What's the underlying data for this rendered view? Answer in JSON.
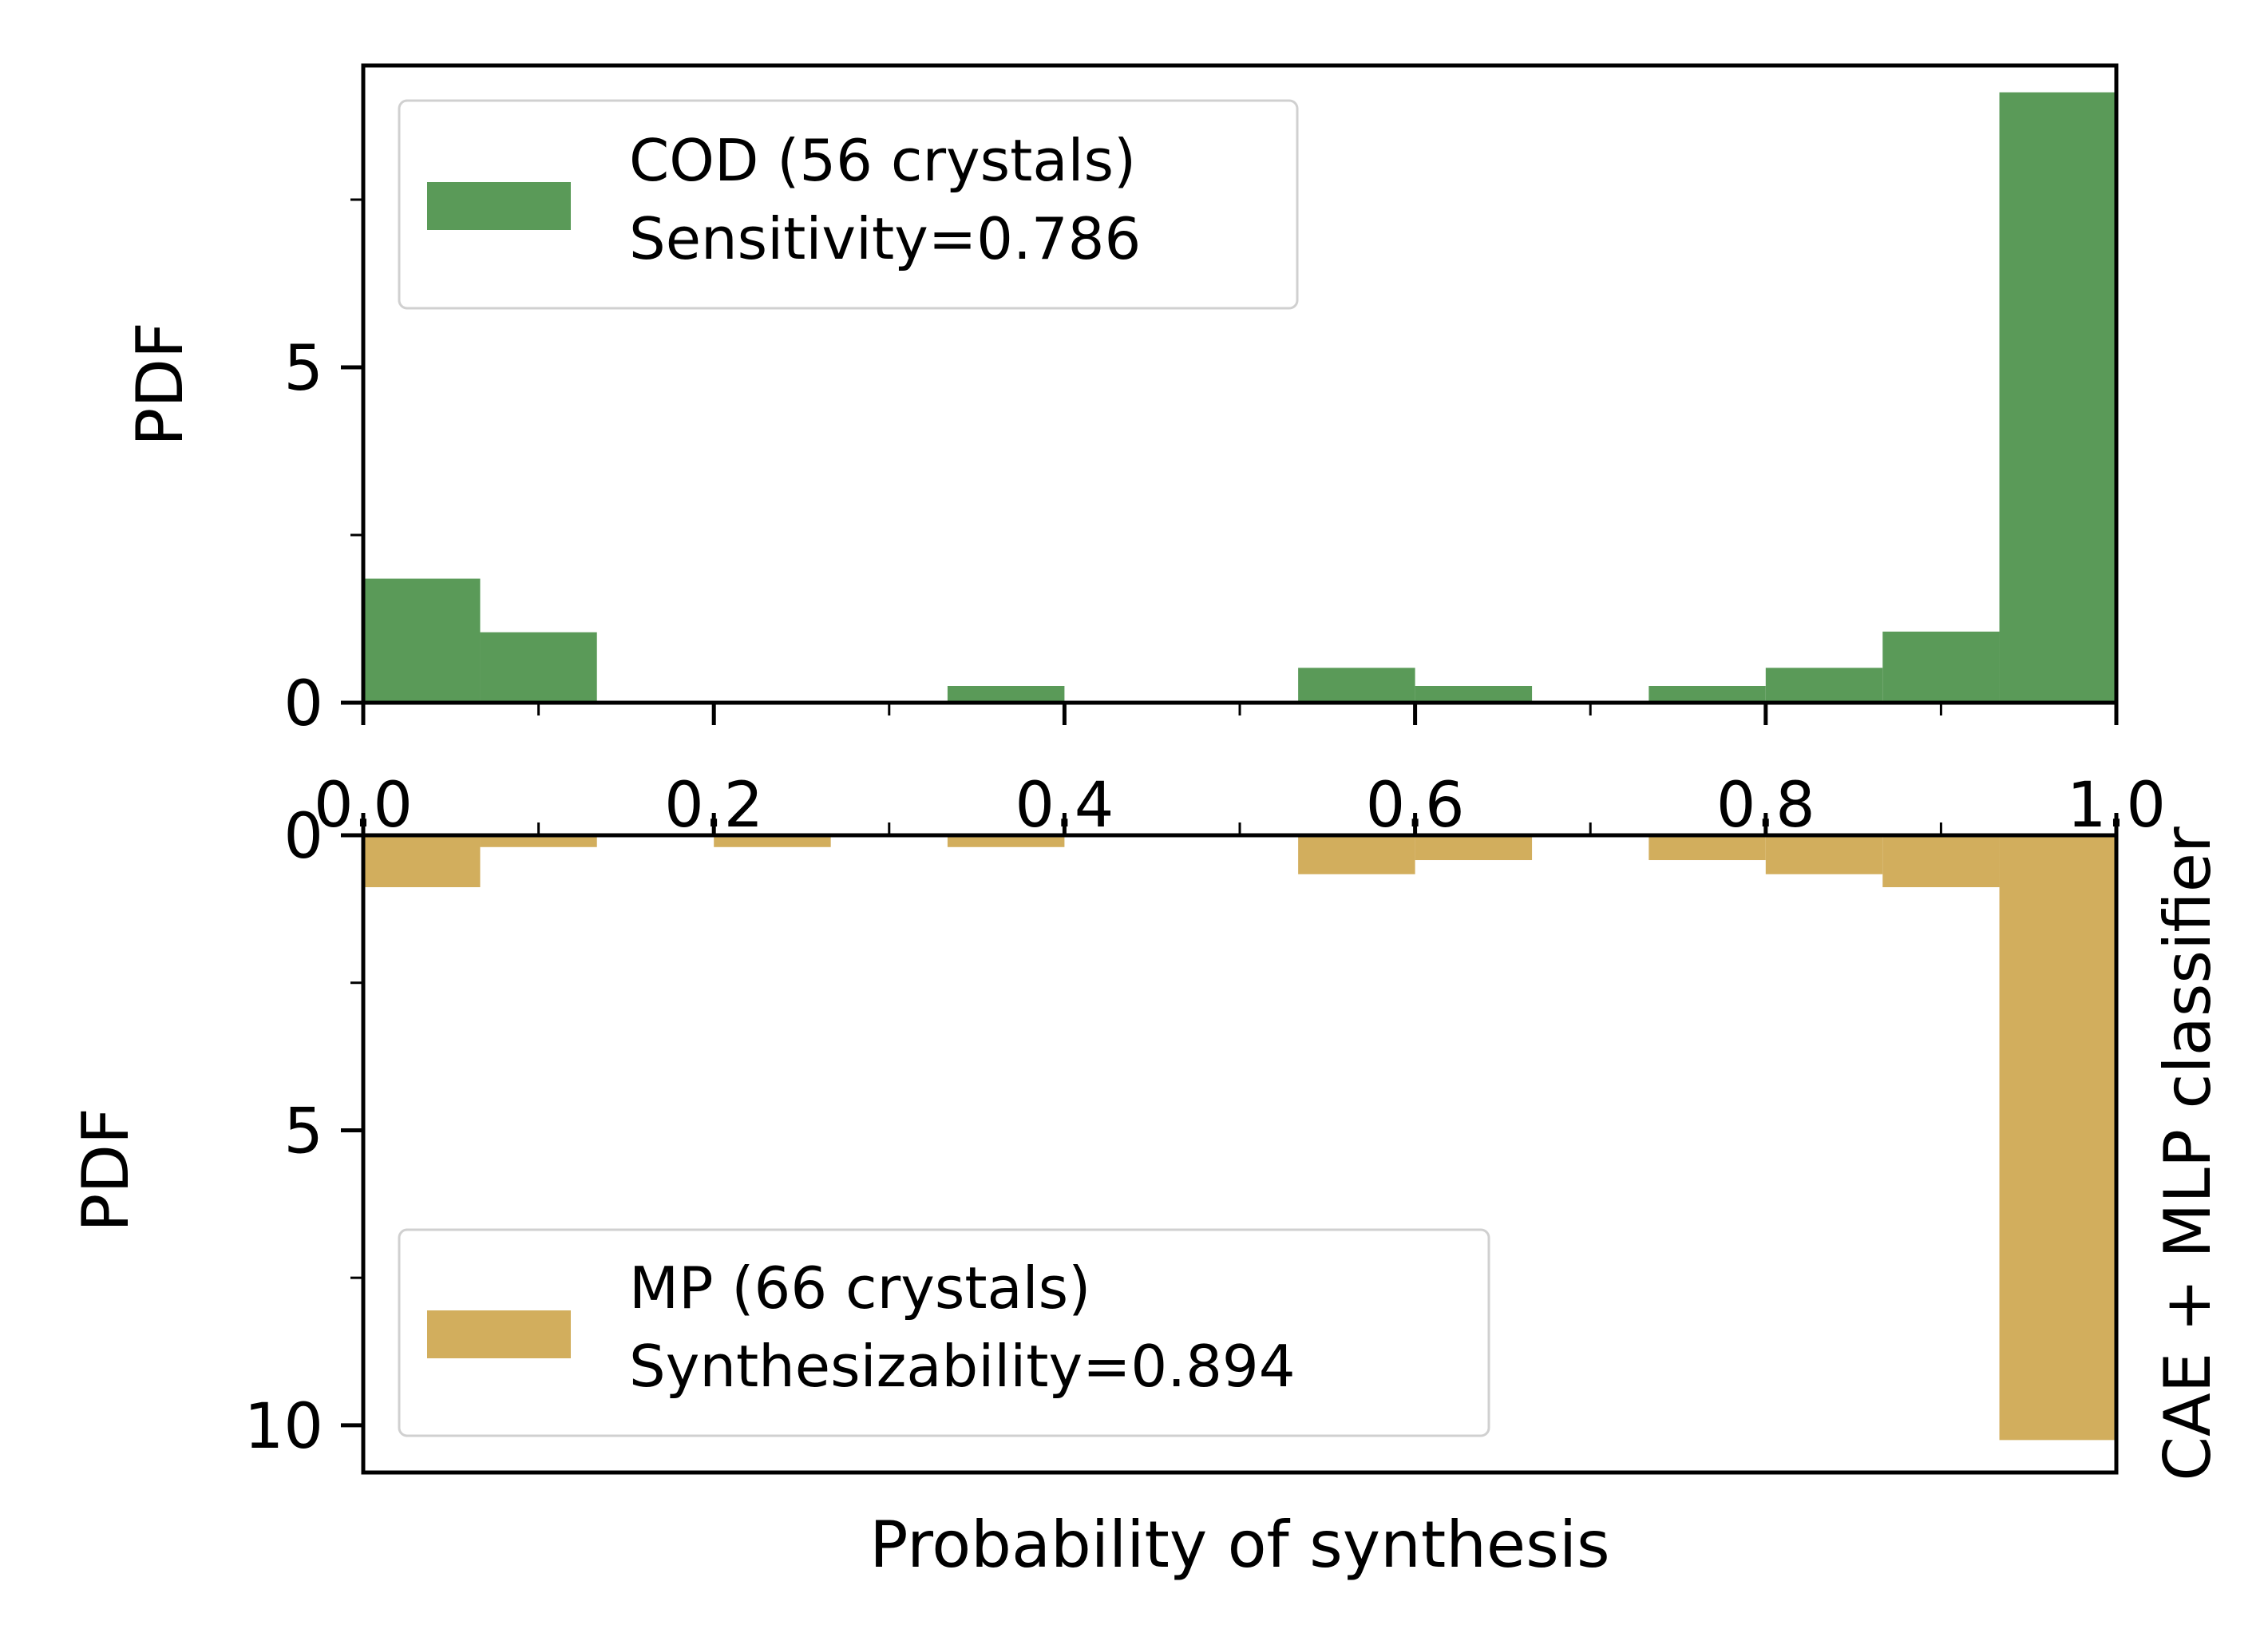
{
  "chart_data": [
    {
      "type": "bar",
      "panel": "top",
      "orientation": "up",
      "ylabel": "PDF",
      "xlim": [
        0.0,
        1.0
      ],
      "ylim": [
        0,
        9.5
      ],
      "x_ticks": [
        "0.0",
        "0.2",
        "0.4",
        "0.6",
        "0.8",
        "1.0"
      ],
      "y_ticks": [
        "0",
        "5"
      ],
      "bin_edges": [
        0.0,
        0.0667,
        0.1333,
        0.2,
        0.2667,
        0.3333,
        0.4,
        0.4667,
        0.5333,
        0.6,
        0.6667,
        0.7333,
        0.8,
        0.8667,
        0.9333,
        1.0
      ],
      "series": [
        {
          "color": "#5a9a58",
          "values": [
            1.85,
            1.05,
            0,
            0,
            0,
            0.25,
            0,
            0,
            0.52,
            0.25,
            0,
            0.25,
            0.52,
            1.06,
            9.1
          ]
        }
      ],
      "legend": {
        "position": "upper-left",
        "lines": [
          "COD (56 crystals)",
          "Sensitivity=0.786"
        ]
      }
    },
    {
      "type": "bar",
      "panel": "bottom",
      "orientation": "down",
      "ylabel": "PDF",
      "xlabel": "Probability of synthesis",
      "right_label": "CAE + MLP classifier",
      "xlim": [
        0.0,
        1.0
      ],
      "ylim": [
        0,
        10.8
      ],
      "y_ticks": [
        "0",
        "5",
        "10"
      ],
      "bin_edges": [
        0.0,
        0.0667,
        0.1333,
        0.2,
        0.2667,
        0.3333,
        0.4,
        0.4667,
        0.5333,
        0.6,
        0.6667,
        0.7333,
        0.8,
        0.8667,
        0.9333,
        1.0
      ],
      "series": [
        {
          "color": "#d2ae5d",
          "values": [
            0.88,
            0.2,
            0,
            0.2,
            0,
            0.2,
            0,
            0,
            0.66,
            0.42,
            0,
            0.42,
            0.66,
            0.88,
            10.25
          ]
        }
      ],
      "legend": {
        "position": "lower-left",
        "lines": [
          "MP (66 crystals)",
          "Synthesizability=0.894"
        ]
      }
    }
  ]
}
